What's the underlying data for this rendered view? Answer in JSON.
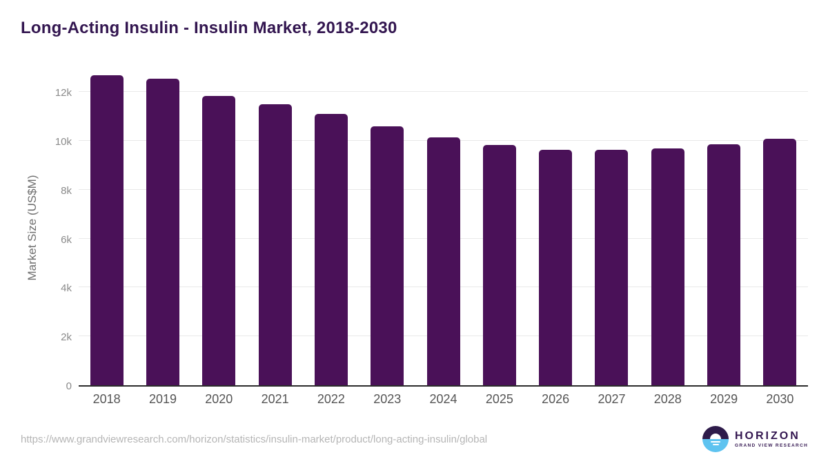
{
  "title": "Long-Acting Insulin - Insulin Market, 2018-2030",
  "footer": {
    "source_url": "https://www.grandviewresearch.com/horizon/statistics/insulin-market/product/long-acting-insulin/global",
    "logo": {
      "name": "HORIZON",
      "subtitle": "GRAND VIEW RESEARCH"
    }
  },
  "colors": {
    "bar": "#4a1158",
    "title": "#331650",
    "axis_label": "#6e6e6e",
    "tick_label": "#8a8a8a",
    "x_label": "#555555",
    "gridline": "#e9e9e9",
    "axis_line": "#2b2b2b",
    "url_text": "#b5b5b5",
    "logo_dark": "#2e1b4a",
    "logo_blue": "#5ec3f0"
  },
  "chart_data": {
    "type": "bar",
    "title": "Long-Acting Insulin - Insulin Market, 2018-2030",
    "categories": [
      "2018",
      "2019",
      "2020",
      "2021",
      "2022",
      "2023",
      "2024",
      "2025",
      "2026",
      "2027",
      "2028",
      "2029",
      "2030"
    ],
    "values": [
      12700,
      12560,
      11840,
      11500,
      11100,
      10610,
      10160,
      9840,
      9630,
      9630,
      9700,
      9870,
      10080
    ],
    "xlabel": "",
    "ylabel": "Market Size (US$M)",
    "ylim": [
      0,
      13000
    ],
    "ytick_step": 2000,
    "ytick_labels": [
      "0",
      "2k",
      "4k",
      "6k",
      "8k",
      "10k",
      "12k"
    ],
    "grid": true,
    "legend": false
  }
}
